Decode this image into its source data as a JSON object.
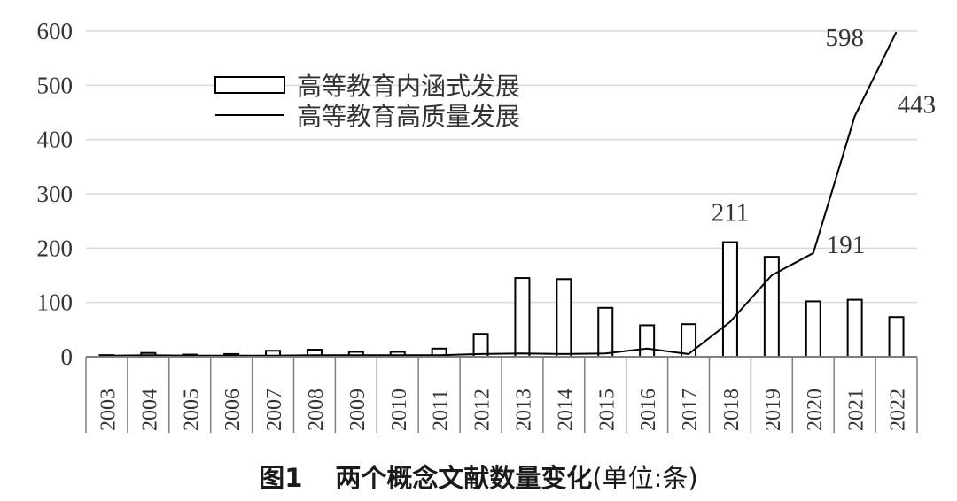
{
  "caption": {
    "figure_number": "图1",
    "title": "两个概念文献数量变化",
    "unit": "(单位:条)"
  },
  "colors": {
    "axis": "#7f7f7f",
    "grid": "#d9d9d9",
    "bar_fill": "#ffffff",
    "bar_stroke": "#000000",
    "line": "#000000",
    "text": "#333333"
  },
  "chart_data": {
    "type": "bar+line",
    "categories": [
      "2003",
      "2004",
      "2005",
      "2006",
      "2007",
      "2008",
      "2009",
      "2010",
      "2011",
      "2012",
      "2013",
      "2014",
      "2015",
      "2016",
      "2017",
      "2018",
      "2019",
      "2020",
      "2021",
      "2022"
    ],
    "series": [
      {
        "name": "高等教育内涵式发展",
        "type": "bar",
        "values": [
          3,
          7,
          4,
          5,
          11,
          13,
          9,
          9,
          15,
          42,
          145,
          143,
          90,
          58,
          60,
          211,
          184,
          102,
          105,
          73
        ]
      },
      {
        "name": "高等教育高质量发展",
        "type": "line",
        "values": [
          2,
          3,
          2,
          2,
          2,
          3,
          3,
          3,
          3,
          5,
          6,
          5,
          6,
          15,
          5,
          64,
          150,
          191,
          443,
          598
        ]
      }
    ],
    "annotations": [
      {
        "series": 0,
        "index": 15,
        "text": "211"
      },
      {
        "series": 1,
        "index": 17,
        "text": "191"
      },
      {
        "series": 1,
        "index": 18,
        "text": "443"
      },
      {
        "series": 1,
        "index": 19,
        "text": "598"
      }
    ],
    "y_ticks": [
      "0",
      "100",
      "200",
      "300",
      "400",
      "500",
      "600"
    ],
    "ylim": [
      0,
      600
    ],
    "grid": true,
    "legend_position": "top-left"
  }
}
